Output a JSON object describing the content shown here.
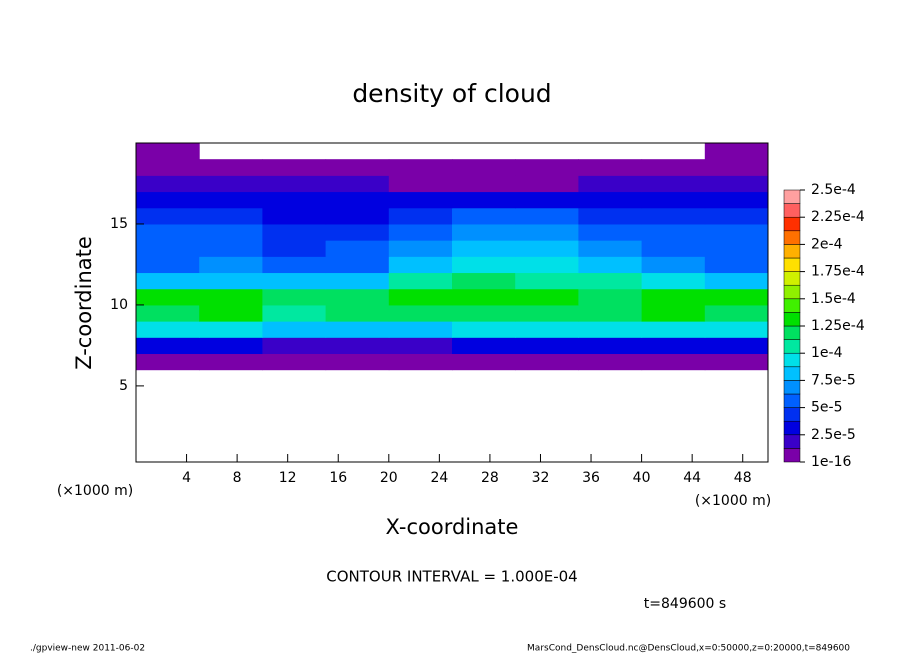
{
  "chart_data": {
    "type": "heatmap",
    "title": "density of cloud",
    "x_label": "X-coordinate",
    "y_label": "Z-coordinate",
    "x_unit": "(×1000 m)",
    "y_unit": "(×1000 m)",
    "contour_note": "CONTOUR INTERVAL = 1.000E-04",
    "time_note": "t=849600 s",
    "footer_left": "./gpview-new  2011-06-02",
    "footer_right": "MarsCond_DensCloud.nc@DensCloud,x=0:50000,z=0:20000,t=849600",
    "xlim": [
      0,
      50
    ],
    "ylim": [
      0.3,
      20
    ],
    "xticks": [
      4,
      8,
      12,
      16,
      20,
      24,
      28,
      32,
      36,
      40,
      44,
      48
    ],
    "yticks": [
      5,
      10,
      15
    ],
    "x_edges": [
      0,
      5,
      10,
      15,
      20,
      25,
      30,
      35,
      40,
      45,
      50
    ],
    "z_edges": [
      6,
      7,
      8,
      9,
      10,
      11,
      12,
      13,
      14,
      15,
      16,
      17,
      18,
      19,
      20
    ],
    "values": [
      [
        8e-06,
        8e-06,
        8e-06,
        8e-06,
        8e-06,
        8e-06,
        8e-06,
        8e-06,
        8e-06,
        8e-06
      ],
      [
        3e-05,
        3e-05,
        2e-05,
        2e-05,
        2e-05,
        2.5e-05,
        3e-05,
        3e-05,
        3e-05,
        3.5e-05
      ],
      [
        9e-05,
        9.5e-05,
        8.5e-05,
        8e-05,
        8e-05,
        9e-05,
        9e-05,
        9e-05,
        9.5e-05,
        9e-05
      ],
      [
        0.00012,
        0.000125,
        0.00011,
        0.000115,
        0.00012,
        0.00012,
        0.000115,
        0.00012,
        0.000125,
        0.00012
      ],
      [
        0.000125,
        0.00013,
        0.000115,
        0.000115,
        0.000125,
        0.00013,
        0.000125,
        0.00012,
        0.00013,
        0.000125
      ],
      [
        8e-05,
        8.5e-05,
        7.5e-05,
        8e-05,
        0.000105,
        0.000115,
        0.00011,
        0.000105,
        9e-05,
        8e-05
      ],
      [
        6e-05,
        6.5e-05,
        5.5e-05,
        6e-05,
        8.5e-05,
        9.5e-05,
        9.5e-05,
        8.5e-05,
        7e-05,
        6e-05
      ],
      [
        5.5e-05,
        6e-05,
        4.5e-05,
        5e-05,
        7e-05,
        8e-05,
        8e-05,
        7e-05,
        6e-05,
        5.5e-05
      ],
      [
        5e-05,
        5.5e-05,
        4e-05,
        4.5e-05,
        6e-05,
        6.5e-05,
        6.5e-05,
        6e-05,
        5.5e-05,
        5e-05
      ],
      [
        4e-05,
        4.5e-05,
        3.5e-05,
        3.5e-05,
        4.5e-05,
        5e-05,
        5e-05,
        4.5e-05,
        4.5e-05,
        4e-05
      ],
      [
        2.5e-05,
        2.5e-05,
        2.5e-05,
        2.5e-05,
        3e-05,
        3e-05,
        3e-05,
        3e-05,
        2.5e-05,
        2.5e-05
      ],
      [
        1.5e-05,
        1.5e-05,
        1.5e-05,
        1.5e-05,
        1.2e-05,
        1.2e-05,
        1.2e-05,
        1.5e-05,
        1.5e-05,
        1.5e-05
      ],
      [
        8e-06,
        8e-06,
        8e-06,
        8e-06,
        8e-06,
        8e-06,
        8e-06,
        8e-06,
        8e-06,
        8e-06
      ],
      [
        8e-06,
        null,
        null,
        null,
        null,
        null,
        null,
        null,
        null,
        8e-06
      ]
    ],
    "colorbar": {
      "levels": [
        1e-16,
        1.25e-05,
        2.5e-05,
        3.75e-05,
        5e-05,
        6.25e-05,
        7.5e-05,
        8.75e-05,
        0.0001,
        0.0001125,
        0.000125,
        0.0001375,
        0.00015,
        0.0001625,
        0.000175,
        0.0001875,
        0.0002,
        0.0002125,
        0.000225,
        0.0002375,
        0.00025
      ],
      "colors": [
        "#7a00a8",
        "#3a00c8",
        "#0000e0",
        "#0030f0",
        "#0060ff",
        "#0090ff",
        "#00c0ff",
        "#00e0e8",
        "#00e8a0",
        "#00e060",
        "#00e000",
        "#40f000",
        "#90f000",
        "#d0f000",
        "#ffe000",
        "#ffb000",
        "#ff7000",
        "#ff3000",
        "#ff6060",
        "#ffa0a0"
      ],
      "ticks": [
        {
          "value": 1e-16,
          "label": "1e-16"
        },
        {
          "value": 2.5e-05,
          "label": "2.5e-5"
        },
        {
          "value": 5e-05,
          "label": "5e-5"
        },
        {
          "value": 7.5e-05,
          "label": "7.5e-5"
        },
        {
          "value": 0.0001,
          "label": "1e-4"
        },
        {
          "value": 0.000125,
          "label": "1.25e-4"
        },
        {
          "value": 0.00015,
          "label": "1.5e-4"
        },
        {
          "value": 0.000175,
          "label": "1.75e-4"
        },
        {
          "value": 0.0002,
          "label": "2e-4"
        },
        {
          "value": 0.000225,
          "label": "2.25e-4"
        },
        {
          "value": 0.00025,
          "label": "2.5e-4"
        }
      ]
    }
  }
}
